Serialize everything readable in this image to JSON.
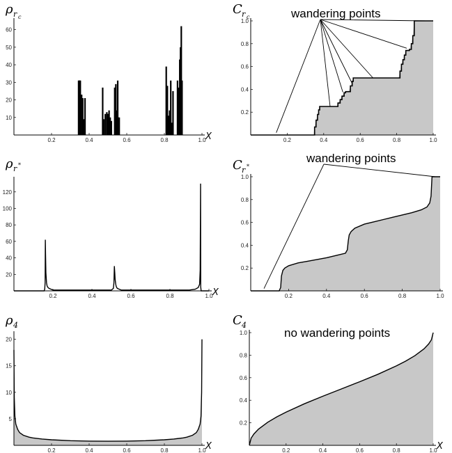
{
  "figure": {
    "annotation_wandering": "wandering points",
    "annotation_none": "no wandering points"
  },
  "chart_data": [
    {
      "id": "rho_rc",
      "type": "line",
      "style": "spikes",
      "ylabel_main": "ρ",
      "ylabel_sub": "r",
      "ylabel_subsub": "c",
      "xlabel": "X",
      "xlim": [
        0,
        1
      ],
      "ylim": [
        0,
        65
      ],
      "x_ticks": [
        "0.2",
        "0.4",
        "0.6",
        "0.8",
        "1.0"
      ],
      "y_ticks": [
        "10",
        "20",
        "30",
        "40",
        "50",
        "60"
      ],
      "x": [
        0.344,
        0.347,
        0.35,
        0.353,
        0.36,
        0.366,
        0.372,
        0.378,
        0.472,
        0.478,
        0.486,
        0.494,
        0.5,
        0.506,
        0.512,
        0.518,
        0.536,
        0.542,
        0.548,
        0.552,
        0.556,
        0.56,
        0.81,
        0.816,
        0.822,
        0.828,
        0.834,
        0.84,
        0.846,
        0.87,
        0.876,
        0.882,
        0.886,
        0.89,
        0.894
      ],
      "y": [
        31,
        31,
        31,
        31,
        23,
        21,
        9,
        21,
        27,
        9,
        12,
        13,
        12,
        14,
        10,
        8,
        27,
        29,
        14,
        31,
        10,
        10,
        39,
        28,
        11,
        14,
        31,
        7,
        25,
        31,
        27,
        43,
        50,
        62,
        31
      ]
    },
    {
      "id": "C_rc",
      "type": "area",
      "style": "steps",
      "ylabel_main": "C",
      "ylabel_sub": "r",
      "ylabel_subsub": "c",
      "xlim": [
        0,
        1
      ],
      "ylim": [
        0,
        1
      ],
      "x_ticks": [
        "0.2",
        "0.4",
        "0.6",
        "0.8",
        "1.0"
      ],
      "y_ticks": [
        "0.2",
        "0.4",
        "0.6",
        "0.8",
        "1.0"
      ],
      "x": [
        0.0,
        0.344,
        0.35,
        0.358,
        0.366,
        0.372,
        0.378,
        0.472,
        0.478,
        0.49,
        0.5,
        0.512,
        0.52,
        0.536,
        0.546,
        0.556,
        0.562,
        0.81,
        0.818,
        0.826,
        0.834,
        0.842,
        0.85,
        0.87,
        0.88,
        0.888,
        0.896,
        1.0
      ],
      "y": [
        0.0,
        0.0,
        0.07,
        0.13,
        0.18,
        0.22,
        0.25,
        0.25,
        0.28,
        0.31,
        0.34,
        0.37,
        0.38,
        0.38,
        0.43,
        0.47,
        0.5,
        0.5,
        0.56,
        0.62,
        0.66,
        0.7,
        0.74,
        0.75,
        0.8,
        0.87,
        1.0,
        1.0
      ],
      "annotation_targets": [
        [
          0.14,
          0.02
        ],
        [
          0.435,
          0.25
        ],
        [
          0.505,
          0.375
        ],
        [
          0.555,
          0.455
        ],
        [
          0.67,
          0.5
        ],
        [
          0.855,
          0.76
        ],
        [
          0.96,
          1.0
        ]
      ]
    },
    {
      "id": "rho_rstar",
      "type": "line",
      "style": "curve",
      "ylabel_main": "ρ",
      "ylabel_sub": "r",
      "ylabel_sup": "*",
      "xlabel": "X",
      "xlim": [
        0,
        1
      ],
      "ylim": [
        0,
        135
      ],
      "x_ticks": [
        "0.2",
        "0.4",
        "0.6",
        "0.8",
        "1.0"
      ],
      "y_ticks": [
        "20",
        "40",
        "60",
        "80",
        "100",
        "120"
      ],
      "x": [
        0.0,
        0.15,
        0.155,
        0.158,
        0.16,
        0.161,
        0.162,
        0.164,
        0.167,
        0.17,
        0.175,
        0.18,
        0.19,
        0.2,
        0.5,
        0.51,
        0.513,
        0.515,
        0.517,
        0.519,
        0.522,
        0.525,
        0.53,
        0.54,
        0.55,
        0.9,
        0.93,
        0.945,
        0.952,
        0.955,
        0.957,
        0.958,
        0.96,
        1.0
      ],
      "y": [
        0,
        0,
        0,
        2,
        10,
        62,
        45,
        22,
        10,
        6,
        4,
        3,
        2,
        1,
        1,
        3,
        10,
        30,
        22,
        14,
        8,
        5,
        3,
        2,
        1,
        1,
        2,
        4,
        8,
        25,
        130,
        5,
        0,
        0
      ]
    },
    {
      "id": "C_rstar",
      "type": "area",
      "style": "curve",
      "ylabel_main": "C",
      "ylabel_sub": "r",
      "ylabel_sup": "*",
      "xlim": [
        0,
        1
      ],
      "ylim": [
        0,
        1
      ],
      "x_ticks": [
        "0.2",
        "0.4",
        "0.6",
        "0.8",
        "1.0"
      ],
      "y_ticks": [
        "0.2",
        "0.4",
        "0.6",
        "0.8",
        "1.0"
      ],
      "x": [
        0.0,
        0.15,
        0.158,
        0.162,
        0.17,
        0.18,
        0.2,
        0.25,
        0.3,
        0.35,
        0.4,
        0.45,
        0.5,
        0.51,
        0.515,
        0.52,
        0.53,
        0.55,
        0.6,
        0.65,
        0.7,
        0.75,
        0.8,
        0.85,
        0.9,
        0.93,
        0.945,
        0.952,
        0.957,
        0.96,
        1.0
      ],
      "y": [
        0.0,
        0.0,
        0.03,
        0.13,
        0.18,
        0.2,
        0.22,
        0.245,
        0.26,
        0.275,
        0.29,
        0.31,
        0.33,
        0.36,
        0.44,
        0.49,
        0.52,
        0.55,
        0.585,
        0.605,
        0.625,
        0.645,
        0.665,
        0.685,
        0.71,
        0.735,
        0.77,
        0.83,
        1.0,
        1.0,
        1.0
      ],
      "annotation_targets": [
        [
          0.07,
          0.02
        ],
        [
          0.975,
          1.0
        ]
      ]
    },
    {
      "id": "rho_4",
      "type": "line",
      "style": "curve",
      "ylabel_main": "ρ",
      "ylabel_sub": "4",
      "xlabel": "X",
      "xlim": [
        0,
        1
      ],
      "ylim": [
        0,
        21
      ],
      "x_ticks": [
        "0.2",
        "0.4",
        "0.6",
        "0.8",
        "1.0"
      ],
      "y_ticks": [
        "5",
        "10",
        "15",
        "20"
      ],
      "x": [
        0.0,
        0.002,
        0.005,
        0.01,
        0.02,
        0.03,
        0.05,
        0.08,
        0.1,
        0.15,
        0.2,
        0.3,
        0.4,
        0.5,
        0.6,
        0.7,
        0.8,
        0.85,
        0.9,
        0.92,
        0.95,
        0.97,
        0.98,
        0.99,
        0.995,
        0.998,
        1.0
      ],
      "y": [
        18,
        9,
        5.5,
        4,
        3.0,
        2.4,
        1.9,
        1.55,
        1.4,
        1.2,
        1.05,
        0.88,
        0.8,
        0.78,
        0.8,
        0.88,
        1.05,
        1.2,
        1.4,
        1.55,
        1.9,
        2.4,
        3.0,
        4,
        5.5,
        10,
        20
      ]
    },
    {
      "id": "C_4",
      "type": "area",
      "style": "curve",
      "ylabel_main": "C",
      "ylabel_sub": "4",
      "xlabel": "X",
      "xlim": [
        0,
        1
      ],
      "ylim": [
        0,
        1
      ],
      "x_ticks": [
        "0.2",
        "0.4",
        "0.6",
        "0.8",
        "1.0"
      ],
      "y_ticks": [
        "0.2",
        "0.4",
        "0.6",
        "0.8",
        "1.0"
      ],
      "x": [
        0.0,
        0.01,
        0.025,
        0.05,
        0.1,
        0.15,
        0.2,
        0.3,
        0.4,
        0.5,
        0.6,
        0.7,
        0.8,
        0.85,
        0.9,
        0.95,
        0.975,
        0.99,
        1.0
      ],
      "y": [
        0.0,
        0.064,
        0.101,
        0.144,
        0.205,
        0.253,
        0.295,
        0.369,
        0.436,
        0.5,
        0.564,
        0.631,
        0.705,
        0.747,
        0.795,
        0.856,
        0.899,
        0.936,
        1.0
      ]
    }
  ]
}
